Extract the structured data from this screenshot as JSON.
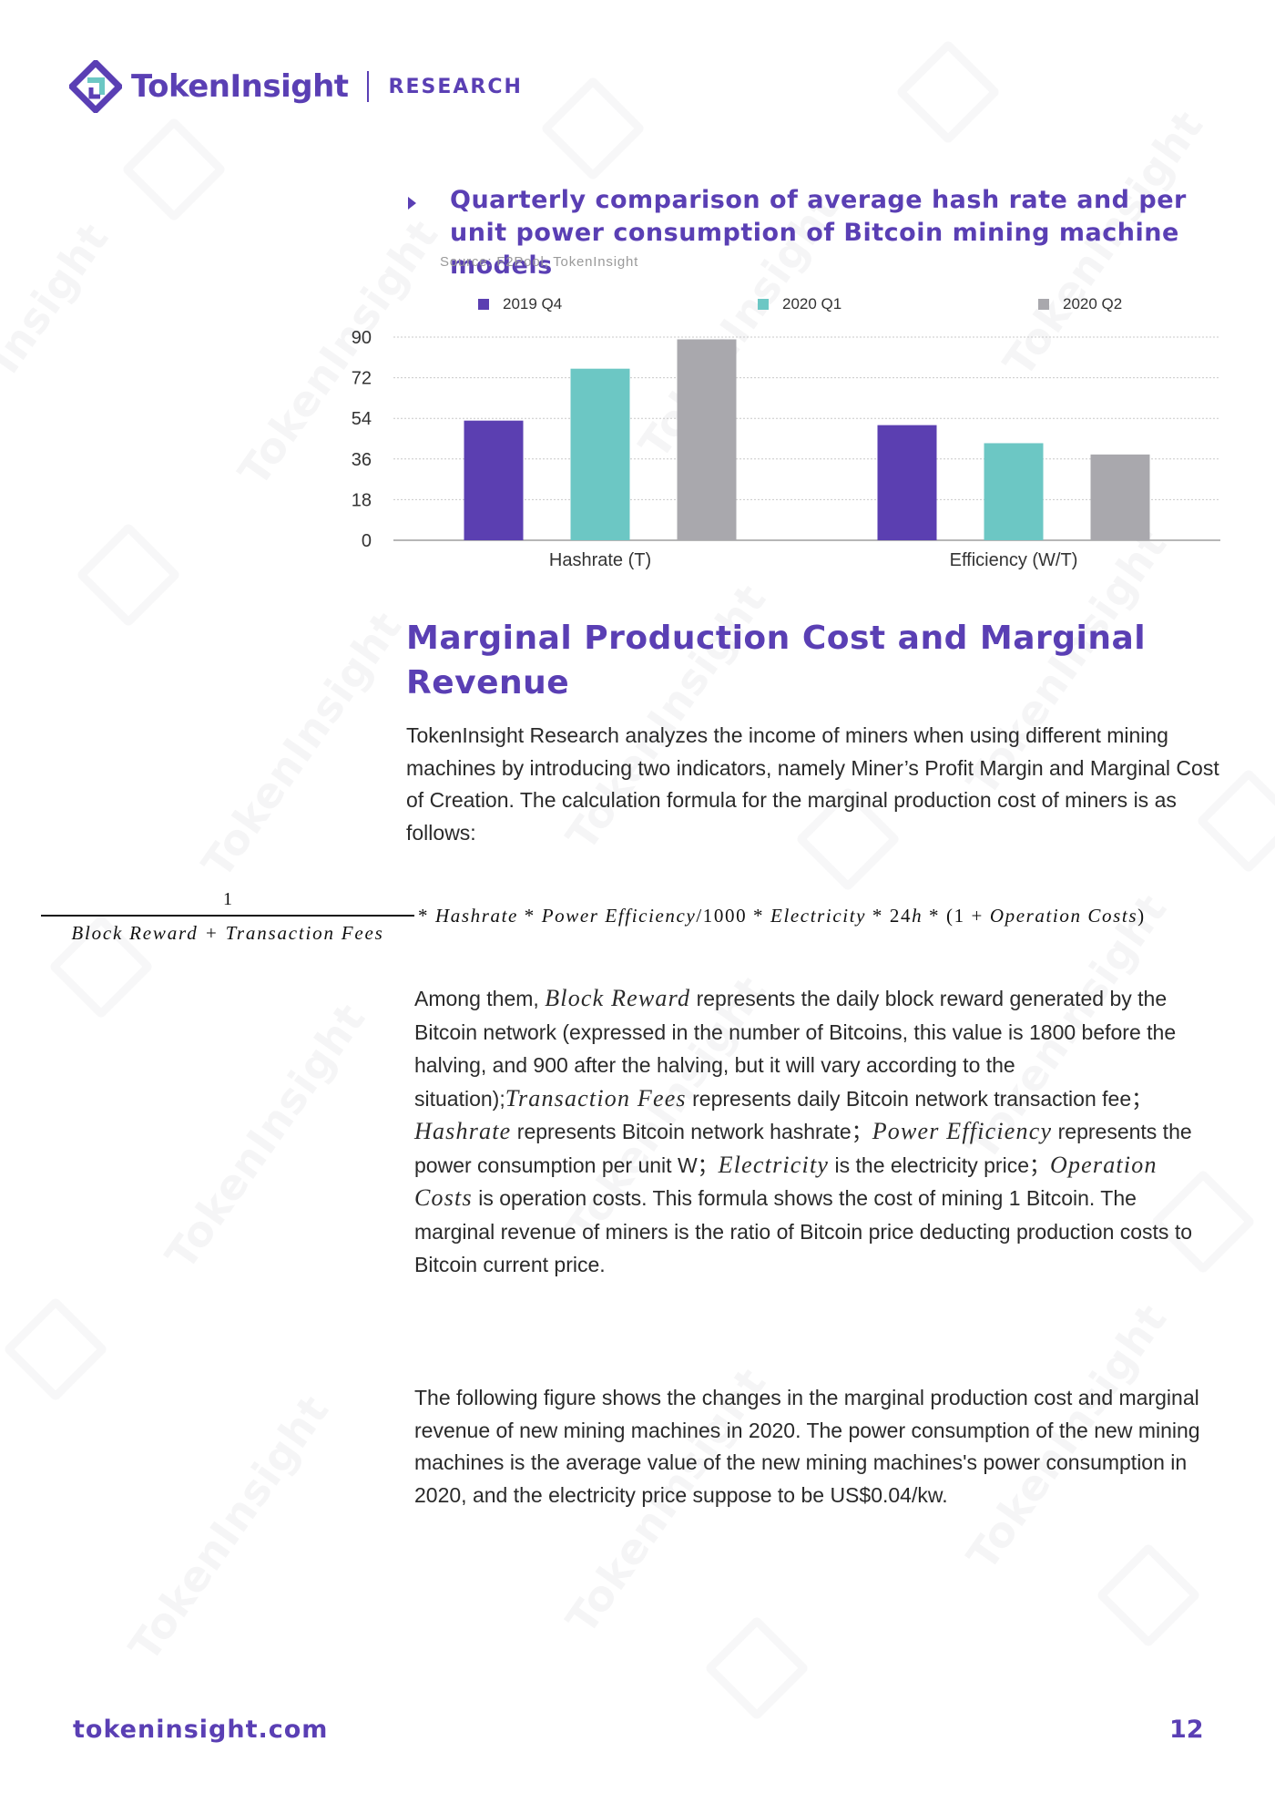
{
  "header": {
    "brand": "TokenInsight",
    "section": "RESEARCH"
  },
  "chart_block": {
    "title": "Quarterly comparison of average hash rate and per unit power consumption of Bitcoin mining machine models",
    "source": "Source: F2Pool, TokenInsight"
  },
  "chart_data": {
    "type": "bar",
    "categories": [
      "Hashrate (T)",
      "Efficiency (W/T)"
    ],
    "series": [
      {
        "name": "2019 Q4",
        "color": "#5b3fb1",
        "values": [
          53,
          51
        ]
      },
      {
        "name": "2020 Q1",
        "color": "#6cc7c4",
        "values": [
          76,
          43
        ]
      },
      {
        "name": "2020 Q2",
        "color": "#a9a8ad",
        "values": [
          89,
          38
        ]
      }
    ],
    "yticks": [
      "0",
      "18",
      "36",
      "54",
      "72",
      "90"
    ],
    "ylim": [
      0,
      90
    ],
    "grid": true,
    "legend": "top"
  },
  "heading": "Marginal Production Cost and Marginal Revenue",
  "intro": "TokenInsight Research analyzes the income of miners when using different mining machines by introducing two indicators, namely Miner’s Profit Margin and Marginal Cost of Creation. The calculation formula for the marginal production cost of miners is as follows:",
  "formula": {
    "numerator": "1",
    "denominator": "Block Reward + Transaction Fees",
    "rest_1": "* ",
    "rest_hashrate": "Hashrate",
    "rest_2": " * ",
    "rest_power": "Power Efficiency",
    "rest_3": "/1000 * ",
    "rest_electricity": "Electricity",
    "rest_4": " * 24",
    "rest_h": "h",
    "rest_5": " * (1 + ",
    "rest_operation": "Operation Costs",
    "rest_6": ")"
  },
  "explanation": {
    "t1": "Among them, ",
    "v_block": "Block Reward",
    "t2": " represents the daily block reward generated by the Bitcoin network (expressed in the number of Bitcoins, this value is 1800 before the halving, and 900 after the halving, but it will vary according to the situation);",
    "v_fees": "Transaction Fees",
    "t3": " represents daily Bitcoin network transaction fee；",
    "v_hashrate": "Hashrate",
    "t4": " represents Bitcoin network hashrate；",
    "v_power": "Power Efficiency",
    "t5": " represents the power consumption per unit W；",
    "v_electricity": "Electricity",
    "t6": " is the electricity price；",
    "v_operation": "Operation Costs",
    "t7": " is operation costs. This formula shows the cost of mining 1 Bitcoin. The marginal revenue of miners is the ratio of Bitcoin price deducting production costs to Bitcoin current price."
  },
  "figure_paragraph": "The following figure shows the changes in the marginal production cost and marginal revenue of new mining machines in 2020. The power consumption of the new mining machines is the average value of the new mining machines's power consumption in 2020, and the electricity price suppose to be US$0.04/kw.",
  "footer": {
    "site": "tokeninsight.com",
    "page": "12"
  }
}
